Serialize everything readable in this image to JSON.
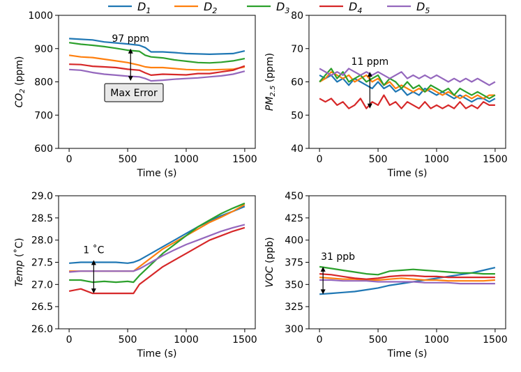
{
  "legend": {
    "placement": "top-center",
    "entries": [
      {
        "base": "D",
        "sub": "1",
        "color": "#1f77b4"
      },
      {
        "base": "D",
        "sub": "2",
        "color": "#ff7f0e"
      },
      {
        "base": "D",
        "sub": "3",
        "color": "#2ca02c"
      },
      {
        "base": "D",
        "sub": "4",
        "color": "#d62728"
      },
      {
        "base": "D",
        "sub": "5",
        "color": "#9467bd"
      }
    ]
  },
  "chart_data": [
    {
      "id": "co2",
      "type": "line",
      "ylabel": {
        "base": "CO",
        "sub": "2",
        "unit": " (ppm)"
      },
      "xlabel": "Time (s)",
      "xlim": [
        -90,
        1590
      ],
      "ylim": [
        600,
        1000
      ],
      "xticks": [
        0,
        500,
        1000,
        1500
      ],
      "yticks": [
        600,
        700,
        800,
        900,
        1000
      ],
      "annotation": {
        "text": "97 ppm",
        "x": 525,
        "y_from": 900,
        "y_to": 803
      },
      "box_label": "Max Error",
      "series": [
        {
          "name": "D1",
          "x": [
            0,
            100,
            200,
            300,
            400,
            500,
            600,
            650,
            700,
            800,
            900,
            1000,
            1100,
            1200,
            1300,
            1400,
            1500
          ],
          "y": [
            930,
            928,
            926,
            920,
            917,
            914,
            910,
            903,
            890,
            890,
            888,
            885,
            884,
            883,
            884,
            885,
            893
          ]
        },
        {
          "name": "D2",
          "x": [
            0,
            100,
            200,
            300,
            400,
            500,
            600,
            650,
            700,
            800,
            900,
            1000,
            1100,
            1200,
            1300,
            1400,
            1500
          ],
          "y": [
            880,
            875,
            873,
            868,
            863,
            858,
            850,
            845,
            843,
            843,
            840,
            837,
            836,
            836,
            837,
            838,
            845
          ]
        },
        {
          "name": "D3",
          "x": [
            0,
            100,
            200,
            300,
            400,
            500,
            600,
            650,
            700,
            800,
            900,
            1000,
            1100,
            1200,
            1300,
            1400,
            1500
          ],
          "y": [
            918,
            913,
            910,
            906,
            901,
            895,
            892,
            880,
            875,
            872,
            866,
            862,
            858,
            857,
            859,
            863,
            870
          ]
        },
        {
          "name": "D4",
          "x": [
            0,
            100,
            200,
            300,
            400,
            500,
            600,
            650,
            700,
            800,
            900,
            1000,
            1100,
            1200,
            1300,
            1400,
            1500
          ],
          "y": [
            853,
            852,
            847,
            845,
            843,
            838,
            835,
            827,
            820,
            823,
            822,
            821,
            825,
            825,
            830,
            835,
            848
          ]
        },
        {
          "name": "D5",
          "x": [
            0,
            100,
            200,
            300,
            400,
            500,
            600,
            650,
            700,
            800,
            900,
            1000,
            1100,
            1200,
            1300,
            1400,
            1500
          ],
          "y": [
            837,
            835,
            828,
            823,
            820,
            817,
            815,
            810,
            803,
            805,
            808,
            810,
            812,
            815,
            818,
            823,
            832
          ]
        }
      ]
    },
    {
      "id": "pm25",
      "type": "line",
      "ylabel": {
        "base": "PM",
        "sub": "2.5",
        "unit": " (ppm)"
      },
      "xlabel": "Time (s)",
      "xlim": [
        -90,
        1590
      ],
      "ylim": [
        40,
        80
      ],
      "xticks": [
        0,
        500,
        1000,
        1500
      ],
      "yticks": [
        40,
        50,
        60,
        70,
        80
      ],
      "annotation": {
        "text": "11 ppm",
        "x": 430,
        "y_from": 63,
        "y_to": 52
      },
      "series": [
        {
          "name": "D1",
          "x": [
            0,
            50,
            100,
            150,
            200,
            250,
            300,
            350,
            400,
            450,
            500,
            550,
            600,
            650,
            700,
            750,
            800,
            850,
            900,
            950,
            1000,
            1050,
            1100,
            1150,
            1200,
            1250,
            1300,
            1350,
            1400,
            1450,
            1500
          ],
          "y": [
            62,
            61,
            62,
            60,
            61,
            59,
            61,
            60,
            59,
            58,
            60,
            58,
            59,
            57,
            58,
            56,
            57,
            56,
            58,
            57,
            56,
            57,
            56,
            55,
            56,
            55,
            54,
            55,
            55,
            54,
            55
          ]
        },
        {
          "name": "D2",
          "x": [
            0,
            50,
            100,
            150,
            200,
            250,
            300,
            350,
            400,
            450,
            500,
            550,
            600,
            650,
            700,
            750,
            800,
            850,
            900,
            950,
            1000,
            1050,
            1100,
            1150,
            1200,
            1250,
            1300,
            1350,
            1400,
            1450,
            1500
          ],
          "y": [
            60,
            61,
            63,
            62,
            61,
            62,
            60,
            61,
            62,
            60,
            61,
            59,
            60,
            58,
            59,
            58,
            57,
            58,
            57,
            58,
            57,
            56,
            57,
            56,
            55,
            56,
            55,
            56,
            55,
            56,
            56
          ]
        },
        {
          "name": "D3",
          "x": [
            0,
            50,
            100,
            150,
            200,
            250,
            300,
            350,
            400,
            450,
            500,
            550,
            600,
            650,
            700,
            750,
            800,
            850,
            900,
            950,
            1000,
            1050,
            1100,
            1150,
            1200,
            1250,
            1300,
            1350,
            1400,
            1450,
            1500
          ],
          "y": [
            60,
            62,
            64,
            61,
            63,
            60,
            61,
            62,
            60,
            61,
            62,
            59,
            61,
            60,
            58,
            60,
            58,
            59,
            57,
            59,
            58,
            57,
            58,
            56,
            58,
            57,
            56,
            57,
            56,
            55,
            56
          ]
        },
        {
          "name": "D4",
          "x": [
            0,
            50,
            100,
            150,
            200,
            250,
            300,
            350,
            400,
            450,
            500,
            550,
            600,
            650,
            700,
            750,
            800,
            850,
            900,
            950,
            1000,
            1050,
            1100,
            1150,
            1200,
            1250,
            1300,
            1350,
            1400,
            1450,
            1500
          ],
          "y": [
            55,
            54,
            55,
            53,
            54,
            52,
            53,
            55,
            52,
            54,
            53,
            56,
            53,
            54,
            52,
            54,
            53,
            52,
            54,
            52,
            53,
            52,
            53,
            52,
            54,
            52,
            53,
            52,
            54,
            53,
            53
          ]
        },
        {
          "name": "D5",
          "x": [
            0,
            50,
            100,
            150,
            200,
            250,
            300,
            350,
            400,
            450,
            500,
            550,
            600,
            650,
            700,
            750,
            800,
            850,
            900,
            950,
            1000,
            1050,
            1100,
            1150,
            1200,
            1250,
            1300,
            1350,
            1400,
            1450,
            1500
          ],
          "y": [
            64,
            63,
            62,
            63,
            62,
            64,
            63,
            62,
            63,
            62,
            63,
            62,
            61,
            62,
            63,
            61,
            62,
            61,
            62,
            61,
            62,
            61,
            60,
            61,
            60,
            61,
            60,
            61,
            60,
            59,
            60
          ]
        }
      ]
    },
    {
      "id": "temp",
      "type": "line",
      "ylabel": {
        "base": "Temp",
        "sub": "",
        "unit": " (˚C)"
      },
      "xlabel": "Time (s)",
      "xlim": [
        -90,
        1590
      ],
      "ylim": [
        26.0,
        29.0
      ],
      "xticks": [
        0,
        500,
        1000,
        1500
      ],
      "yticks": [
        26.0,
        26.5,
        27.0,
        27.5,
        28.0,
        28.5,
        29.0
      ],
      "annotation": {
        "text": "1 ˚C",
        "x": 210,
        "y_from": 27.55,
        "y_to": 26.8
      },
      "series": [
        {
          "name": "D1",
          "x": [
            0,
            100,
            200,
            300,
            400,
            500,
            550,
            600,
            700,
            800,
            900,
            1000,
            1100,
            1200,
            1300,
            1400,
            1500
          ],
          "y": [
            27.48,
            27.5,
            27.5,
            27.5,
            27.5,
            27.48,
            27.5,
            27.55,
            27.7,
            27.85,
            28.0,
            28.15,
            28.3,
            28.43,
            28.55,
            28.65,
            28.76
          ]
        },
        {
          "name": "D2",
          "x": [
            0,
            100,
            200,
            300,
            400,
            500,
            550,
            600,
            700,
            800,
            900,
            1000,
            1100,
            1200,
            1300,
            1400,
            1500
          ],
          "y": [
            27.3,
            27.3,
            27.3,
            27.3,
            27.3,
            27.3,
            27.3,
            27.4,
            27.6,
            27.8,
            27.95,
            28.1,
            28.25,
            28.4,
            28.52,
            28.65,
            28.8
          ]
        },
        {
          "name": "D3",
          "x": [
            0,
            100,
            200,
            300,
            400,
            500,
            550,
            600,
            700,
            800,
            900,
            1000,
            1100,
            1200,
            1300,
            1400,
            1500
          ],
          "y": [
            27.1,
            27.1,
            27.05,
            27.07,
            27.05,
            27.07,
            27.05,
            27.2,
            27.45,
            27.7,
            27.9,
            28.1,
            28.3,
            28.45,
            28.6,
            28.72,
            28.83
          ]
        },
        {
          "name": "D4",
          "x": [
            0,
            100,
            200,
            300,
            400,
            500,
            550,
            600,
            700,
            800,
            900,
            1000,
            1100,
            1200,
            1300,
            1400,
            1500
          ],
          "y": [
            26.85,
            26.9,
            26.8,
            26.8,
            26.8,
            26.8,
            26.8,
            27.0,
            27.2,
            27.4,
            27.55,
            27.7,
            27.85,
            28.0,
            28.1,
            28.2,
            28.28
          ]
        },
        {
          "name": "D5",
          "x": [
            0,
            100,
            200,
            300,
            400,
            500,
            550,
            600,
            700,
            800,
            900,
            1000,
            1100,
            1200,
            1300,
            1400,
            1500
          ],
          "y": [
            27.28,
            27.3,
            27.3,
            27.3,
            27.3,
            27.3,
            27.3,
            27.35,
            27.5,
            27.65,
            27.78,
            27.9,
            28.0,
            28.1,
            28.2,
            28.28,
            28.35
          ]
        }
      ]
    },
    {
      "id": "voc",
      "type": "line",
      "ylabel": {
        "base": "VOC",
        "sub": "",
        "unit": " (ppb)"
      },
      "xlabel": "Time (s)",
      "xlim": [
        -90,
        1590
      ],
      "ylim": [
        300,
        450
      ],
      "xticks": [
        0,
        500,
        1000,
        1500
      ],
      "yticks": [
        300,
        325,
        350,
        375,
        400,
        425,
        450
      ],
      "annotation": {
        "text": "31 ppb",
        "x": 30,
        "y_from": 370,
        "y_to": 339
      },
      "series": [
        {
          "name": "D1",
          "x": [
            0,
            100,
            200,
            300,
            400,
            500,
            600,
            700,
            800,
            900,
            1000,
            1100,
            1200,
            1300,
            1400,
            1500
          ],
          "y": [
            339,
            340,
            341,
            342,
            344,
            346,
            349,
            351,
            353,
            355,
            357,
            359,
            361,
            363,
            366,
            369
          ]
        },
        {
          "name": "D2",
          "x": [
            0,
            100,
            200,
            300,
            400,
            500,
            600,
            700,
            800,
            900,
            1000,
            1100,
            1200,
            1300,
            1400,
            1500
          ],
          "y": [
            358,
            357,
            356,
            356,
            355,
            355,
            356,
            357,
            356,
            355,
            355,
            354,
            354,
            354,
            354,
            355
          ]
        },
        {
          "name": "D3",
          "x": [
            0,
            100,
            200,
            300,
            400,
            500,
            600,
            700,
            800,
            900,
            1000,
            1100,
            1200,
            1300,
            1400,
            1500
          ],
          "y": [
            370,
            368,
            366,
            364,
            362,
            361,
            365,
            366,
            367,
            366,
            365,
            364,
            363,
            363,
            362,
            362
          ]
        },
        {
          "name": "D4",
          "x": [
            0,
            100,
            200,
            300,
            400,
            500,
            600,
            700,
            800,
            900,
            1000,
            1100,
            1200,
            1300,
            1400,
            1500
          ],
          "y": [
            362,
            361,
            359,
            357,
            356,
            357,
            359,
            360,
            360,
            359,
            359,
            358,
            358,
            358,
            358,
            358
          ]
        },
        {
          "name": "D5",
          "x": [
            0,
            100,
            200,
            300,
            400,
            500,
            600,
            700,
            800,
            900,
            1000,
            1100,
            1200,
            1300,
            1400,
            1500
          ],
          "y": [
            355,
            355,
            354,
            354,
            354,
            353,
            353,
            353,
            353,
            352,
            352,
            352,
            351,
            351,
            351,
            351
          ]
        }
      ]
    }
  ]
}
